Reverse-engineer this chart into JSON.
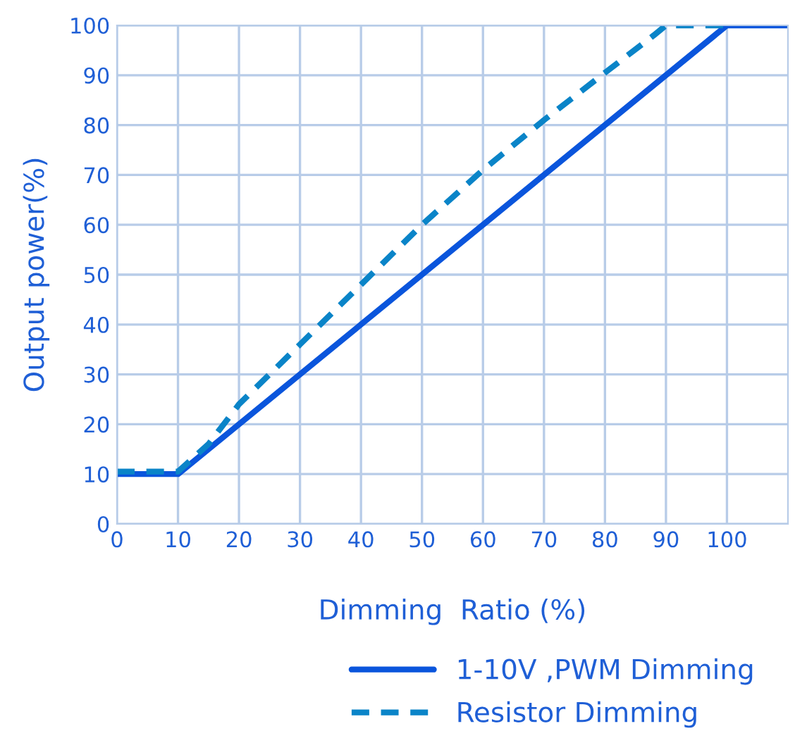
{
  "chart_data": {
    "type": "line",
    "xlabel": "Dimming  Ratio (%)",
    "ylabel": "Output power(%)",
    "xlim": [
      0,
      110
    ],
    "ylim": [
      0,
      100
    ],
    "xticks": [
      0,
      10,
      20,
      30,
      40,
      50,
      60,
      70,
      80,
      90,
      100
    ],
    "yticks": [
      0,
      10,
      20,
      30,
      40,
      50,
      60,
      70,
      80,
      90,
      100
    ],
    "grid": true,
    "legend": "bottom",
    "series": [
      {
        "name": "1-10V ,PWM Dimming",
        "color": "#0a55dc",
        "line_style": "solid",
        "x": [
          0,
          10,
          100,
          110
        ],
        "values": [
          10,
          10,
          100,
          100
        ]
      },
      {
        "name": "Resistor Dimming",
        "color": "#0a84c8",
        "line_style": "dashed",
        "x": [
          0,
          10,
          15,
          20,
          30,
          40,
          50,
          60,
          70,
          80,
          88,
          90,
          100
        ],
        "values": [
          10.5,
          10.5,
          16,
          24,
          36,
          48,
          60,
          71,
          81,
          90.5,
          98,
          100,
          100
        ]
      }
    ]
  }
}
